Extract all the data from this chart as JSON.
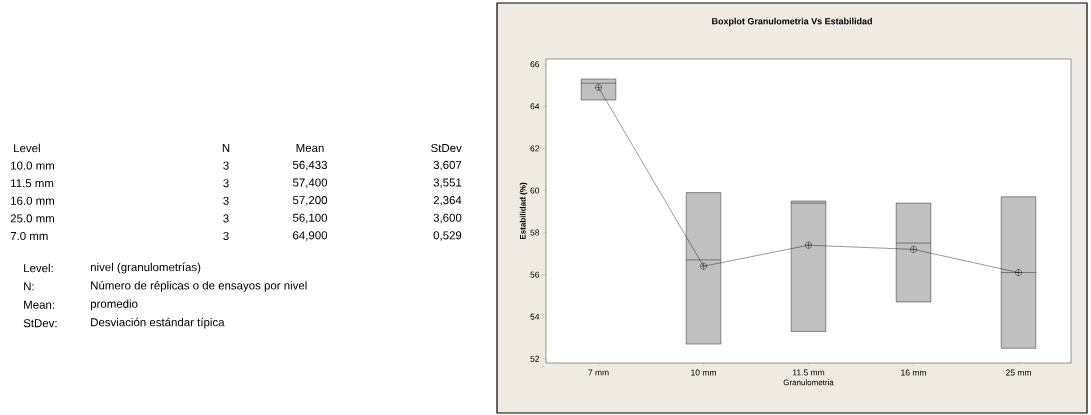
{
  "chart_data": [
    {
      "type": "other",
      "annotations": [
        "Level",
        "N",
        "Mean",
        "StDev",
        "10.0 mm",
        "3",
        "56,433",
        "3,607",
        "11.5 mm",
        "3",
        "57,400",
        "3,551",
        "16.0 mm",
        "3",
        "57,200",
        "2,364",
        "25.0 mm",
        "3",
        "56,100",
        "3,600",
        "7.0   mm",
        "3",
        "64,900",
        "0,529",
        "Level:",
        "nivel (granulometrías)",
        "N:",
        "Número de réplicas o de ensayos por nivel",
        "Mean:",
        "promedio",
        "StDev:",
        "Desviación estándar típica"
      ]
    },
    {
      "type": "box",
      "title": "Boxplot  Granulometria Vs Estabilidad",
      "xlabel": "Granulometria",
      "ylabel": "Estabilidad (%)",
      "categories": [
        "7 mm",
        "10 mm",
        "11.5 mm",
        "16 mm",
        "25 mm"
      ],
      "ylim": [
        51.8,
        66.25
      ],
      "yticks": [
        52,
        54,
        56,
        58,
        60,
        62,
        64,
        66
      ],
      "series": [
        {
          "type": "box",
          "color": "#c0c0c0",
          "boxes": [
            {
              "low": 64.3,
              "q1": 64.3,
              "median": 65.1,
              "q3": 65.3,
              "high": 65.3
            },
            {
              "low": 52.7,
              "q1": 52.7,
              "median": 56.7,
              "q3": 59.9,
              "high": 59.9
            },
            {
              "low": 53.3,
              "q1": 53.3,
              "median": 59.4,
              "q3": 59.5,
              "high": 59.5
            },
            {
              "low": 54.7,
              "q1": 54.7,
              "median": 57.5,
              "q3": 59.4,
              "high": 59.4
            },
            {
              "low": 52.5,
              "q1": 52.5,
              "median": 56.1,
              "q3": 59.7,
              "high": 59.7
            }
          ]
        },
        {
          "type": "line",
          "color": "#000000",
          "marker": "cross",
          "values": [
            64.9,
            56.4,
            57.4,
            57.2,
            56.1
          ]
        }
      ]
    }
  ]
}
